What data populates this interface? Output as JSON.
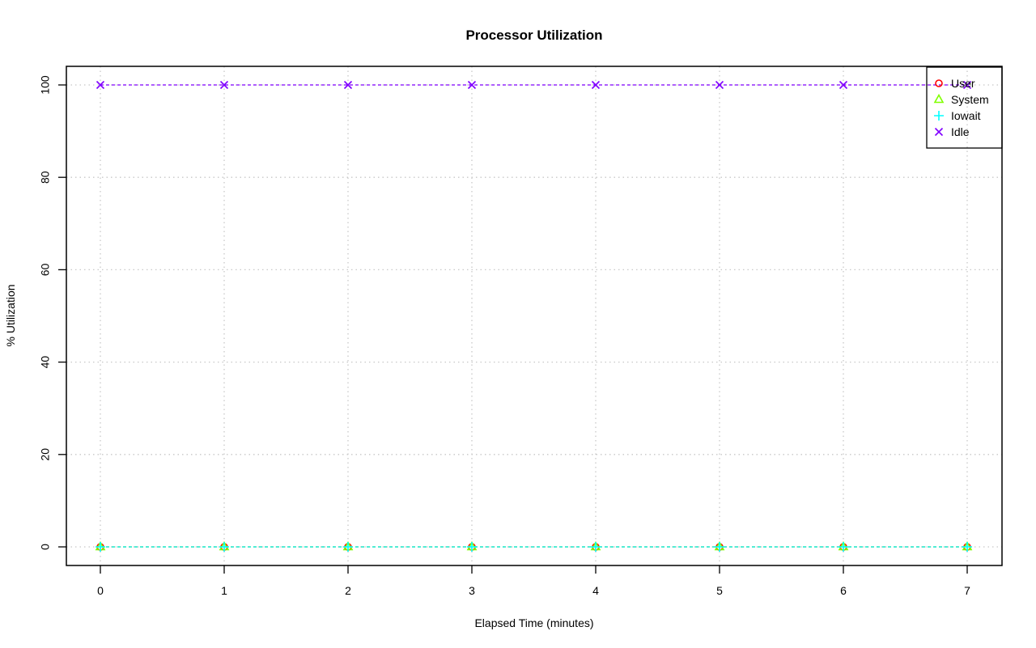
{
  "chart_data": {
    "type": "line",
    "title": "Processor Utilization",
    "xlabel": "Elapsed Time (minutes)",
    "ylabel": "% Utilization",
    "x": [
      0,
      1,
      2,
      3,
      4,
      5,
      6,
      7
    ],
    "xlim": [
      0,
      7
    ],
    "ylim": [
      0,
      100
    ],
    "xticks": [
      "0",
      "1",
      "2",
      "3",
      "4",
      "5",
      "6",
      "7"
    ],
    "yticks": [
      "0",
      "20",
      "40",
      "60",
      "80",
      "100"
    ],
    "grid": true,
    "legend_position": "top-right",
    "series": [
      {
        "name": "User",
        "color": "#ff0000",
        "marker": "circle",
        "values": [
          0,
          0,
          0,
          0,
          0,
          0,
          0,
          0
        ]
      },
      {
        "name": "System",
        "color": "#80ff00",
        "marker": "triangle",
        "values": [
          0,
          0,
          0,
          0,
          0,
          0,
          0,
          0
        ]
      },
      {
        "name": "Iowait",
        "color": "#00ffff",
        "marker": "plus",
        "values": [
          0,
          0,
          0,
          0,
          0,
          0,
          0,
          0
        ]
      },
      {
        "name": "Idle",
        "color": "#8000ff",
        "marker": "cross",
        "values": [
          100,
          100,
          100,
          100,
          100,
          100,
          100,
          100
        ]
      }
    ]
  }
}
